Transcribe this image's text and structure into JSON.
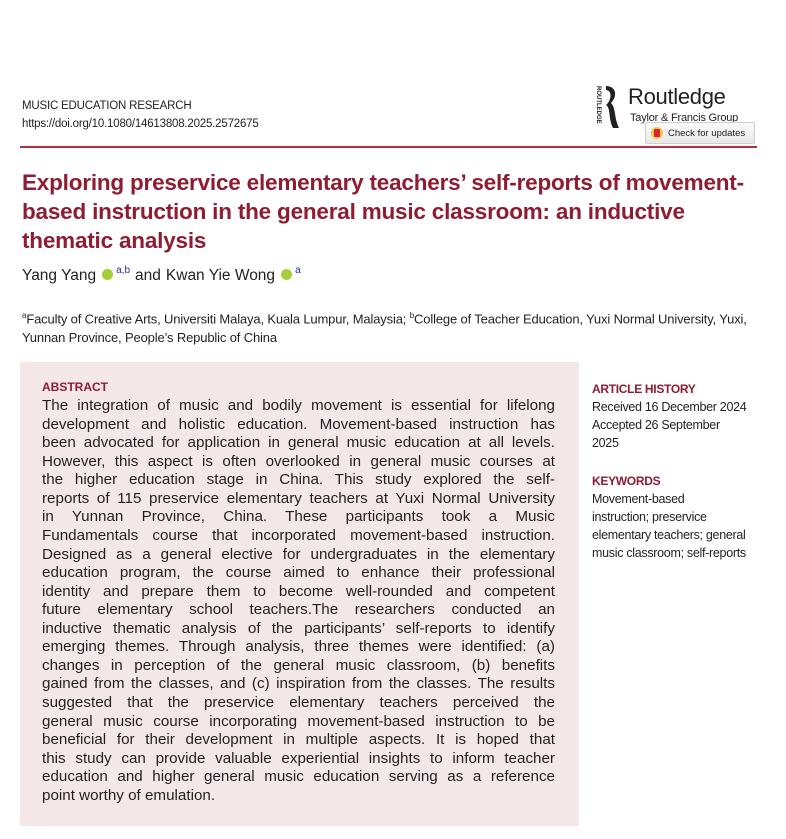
{
  "header": {
    "journal": "MUSIC EDUCATION RESEARCH",
    "doi": "https://doi.org/10.1080/14613808.2025.2572675",
    "publisher": "Routledge",
    "publisher_sub": "Taylor & Francis Group",
    "logo_vertical_text": "ROUTLEDGE",
    "check_updates": "Check for updates"
  },
  "title": "Exploring preservice elementary teachers’ self-reports of movement-based instruction in the general music classroom: an inductive thematic analysis",
  "authors": [
    {
      "name": "Yang Yang",
      "affil": "a,b"
    },
    {
      "name": "Kwan Yie Wong",
      "affil": "a"
    }
  ],
  "authors_conj": "and",
  "affiliations": [
    {
      "mark": "a",
      "text": "Faculty of Creative Arts, Universiti Malaya, Kuala Lumpur, Malaysia;"
    },
    {
      "mark": "b",
      "text": "College of Teacher Education, Yuxi Normal University, Yuxi, Yunnan Province, People’s Republic of China"
    }
  ],
  "abstract": {
    "heading": "ABSTRACT",
    "lines": [
      "The integration of music and bodily movement is essential for lifelong",
      "development and holistic education. Movement-based instruction has",
      "been advocated for application in general music education at all levels.",
      "However, this aspect is often overlooked in general music courses at",
      "the higher education stage in China. This study explored the self-",
      "reports of 115 preservice elementary teachers at Yuxi Normal University",
      "in Yunnan Province, China. These participants took a Music",
      "Fundamentals course that incorporated movement-based instruction.",
      "Designed as a general elective for undergraduates in the elementary",
      "education program, the course aimed to enhance their professional",
      "identity and prepare them to become well-rounded and competent",
      "future elementary school teachers.The researchers conducted an",
      "inductive thematic analysis of the participants’ self-reports to identify",
      "emerging themes. Through analysis, three themes were identified: (a)",
      "changes in perception of the general music classroom, (b) benefits",
      "gained from the classes, and (c) inspiration from the classes. The results",
      "suggested that the preservice elementary teachers perceived the",
      "general music course incorporating movement-based instruction to be",
      "beneficial for their development in multiple aspects. It is hoped that",
      "this study can provide valuable experiential insights to inform teacher",
      "education and higher general music education serving as a reference",
      "point worthy of emulation."
    ]
  },
  "sidebar": {
    "history_heading": "ARTICLE HISTORY",
    "history_lines": [
      "Received 16 December 2024",
      "Accepted 26 September",
      "2025"
    ],
    "keywords_heading": "KEYWORDS",
    "keywords_lines": [
      "Movement-based",
      "instruction; preservice",
      "elementary teachers; general",
      "music classroom; self-reports"
    ]
  },
  "colors": {
    "accent": "#8e1c33",
    "rule": "#a8323e",
    "abstract_bg": "#f4e7e8",
    "orcid": "#a6ce39"
  }
}
